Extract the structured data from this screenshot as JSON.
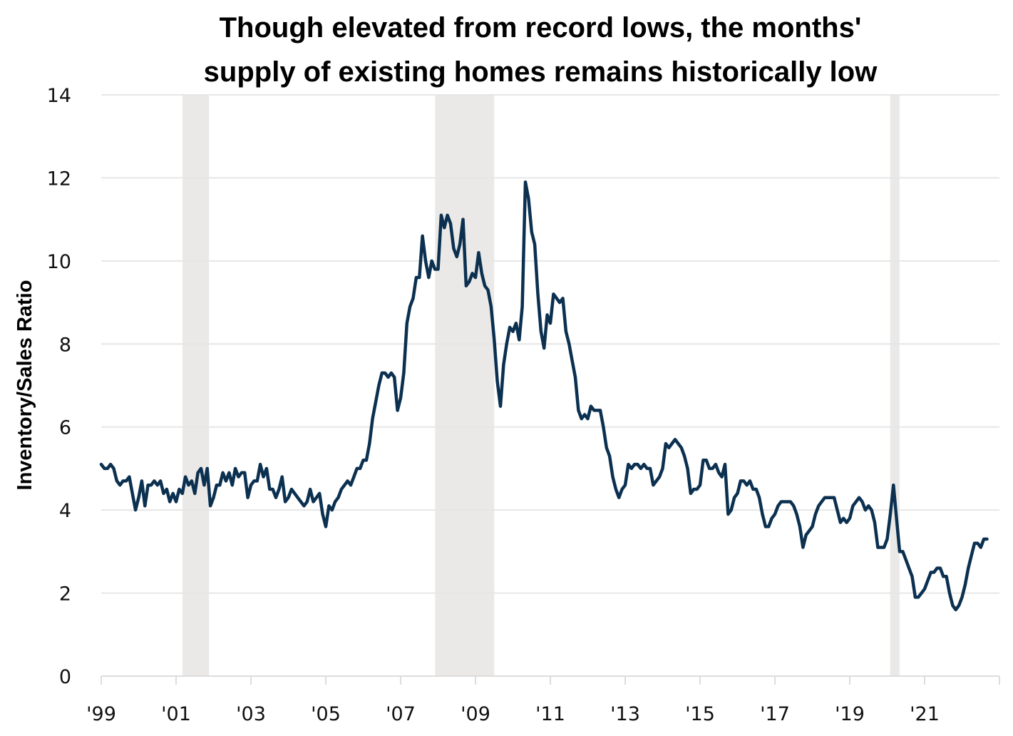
{
  "chart_data": {
    "type": "line",
    "title": "Though elevated from record lows, the months' supply of existing homes remains historically low",
    "title_lines": [
      "Though elevated from record lows, the months'",
      "supply of existing homes remains historically low"
    ],
    "xlabel": "",
    "ylabel": "Inventory/Sales Ratio",
    "ylim": [
      0,
      14
    ],
    "yticks": [
      0,
      2,
      4,
      6,
      8,
      10,
      12,
      14
    ],
    "xlim": [
      1999.0,
      2023.0
    ],
    "xticks": [
      {
        "value": 1999,
        "label": "'99"
      },
      {
        "value": 2001,
        "label": "'01"
      },
      {
        "value": 2003,
        "label": "'03"
      },
      {
        "value": 2005,
        "label": "'05"
      },
      {
        "value": 2007,
        "label": "'07"
      },
      {
        "value": 2009,
        "label": "'09"
      },
      {
        "value": 2011,
        "label": "'11"
      },
      {
        "value": 2013,
        "label": "'13"
      },
      {
        "value": 2015,
        "label": "'15"
      },
      {
        "value": 2017,
        "label": "'17"
      },
      {
        "value": 2019,
        "label": "'19"
      },
      {
        "value": 2021,
        "label": "'21"
      },
      {
        "value": 2023,
        "label": ""
      }
    ],
    "grid": true,
    "legend": "none",
    "line_color": "#0b3050",
    "shade_color": "#ebe9e7",
    "recessions": [
      {
        "start": 2001.17,
        "end": 2001.88
      },
      {
        "start": 2007.92,
        "end": 2009.5
      },
      {
        "start": 2020.08,
        "end": 2020.33
      }
    ],
    "series": [
      {
        "name": "Months' supply of existing homes",
        "start": 1999.0,
        "frequency": "monthly",
        "values": [
          5.1,
          5.0,
          5.0,
          5.1,
          5.0,
          4.7,
          4.6,
          4.7,
          4.7,
          4.8,
          4.4,
          4.0,
          4.3,
          4.7,
          4.1,
          4.6,
          4.6,
          4.7,
          4.6,
          4.7,
          4.4,
          4.5,
          4.2,
          4.4,
          4.2,
          4.5,
          4.4,
          4.8,
          4.6,
          4.7,
          4.4,
          4.9,
          5.0,
          4.6,
          5.0,
          4.1,
          4.3,
          4.6,
          4.6,
          4.9,
          4.7,
          4.9,
          4.6,
          5.0,
          4.8,
          4.9,
          4.9,
          4.3,
          4.6,
          4.7,
          4.7,
          5.1,
          4.8,
          5.0,
          4.5,
          4.5,
          4.3,
          4.5,
          4.8,
          4.2,
          4.3,
          4.5,
          4.4,
          4.3,
          4.2,
          4.1,
          4.2,
          4.5,
          4.2,
          4.3,
          4.4,
          3.9,
          3.6,
          4.1,
          4.0,
          4.2,
          4.3,
          4.5,
          4.6,
          4.7,
          4.6,
          4.8,
          5.0,
          5.0,
          5.2,
          5.2,
          5.6,
          6.2,
          6.6,
          7.0,
          7.3,
          7.3,
          7.2,
          7.3,
          7.2,
          6.4,
          6.7,
          7.3,
          8.5,
          8.9,
          9.1,
          9.6,
          9.6,
          10.6,
          10.0,
          9.6,
          10.0,
          9.8,
          9.8,
          11.1,
          10.8,
          11.1,
          10.9,
          10.3,
          10.1,
          10.4,
          11.0,
          9.4,
          9.5,
          9.7,
          9.6,
          10.2,
          9.7,
          9.4,
          9.3,
          8.9,
          8.1,
          7.1,
          6.5,
          7.5,
          8.0,
          8.4,
          8.3,
          8.5,
          8.1,
          8.9,
          11.9,
          11.5,
          10.7,
          10.4,
          9.2,
          8.3,
          7.9,
          8.7,
          8.5,
          9.2,
          9.1,
          9.0,
          9.1,
          8.3,
          8.0,
          7.6,
          7.2,
          6.4,
          6.2,
          6.3,
          6.2,
          6.5,
          6.4,
          6.4,
          6.4,
          6.0,
          5.5,
          5.3,
          4.8,
          4.5,
          4.3,
          4.5,
          4.6,
          5.1,
          5.0,
          5.1,
          5.1,
          5.0,
          5.1,
          5.0,
          5.0,
          4.6,
          4.7,
          4.8,
          5.0,
          5.6,
          5.5,
          5.6,
          5.7,
          5.6,
          5.5,
          5.3,
          5.0,
          4.4,
          4.5,
          4.5,
          4.6,
          5.2,
          5.2,
          5.0,
          5.0,
          5.1,
          4.9,
          4.8,
          5.1,
          3.9,
          4.0,
          4.3,
          4.4,
          4.7,
          4.7,
          4.6,
          4.7,
          4.5,
          4.5,
          4.3,
          3.9,
          3.6,
          3.6,
          3.8,
          3.9,
          4.1,
          4.2,
          4.2,
          4.2,
          4.2,
          4.1,
          3.9,
          3.6,
          3.1,
          3.4,
          3.5,
          3.6,
          3.9,
          4.1,
          4.2,
          4.3,
          4.3,
          4.3,
          4.3,
          4.0,
          3.7,
          3.8,
          3.7,
          3.8,
          4.1,
          4.2,
          4.3,
          4.2,
          4.0,
          4.1,
          4.0,
          3.7,
          3.1,
          3.1,
          3.1,
          3.3,
          3.9,
          4.6,
          3.8,
          3.0,
          3.0,
          2.8,
          2.6,
          2.4,
          1.9,
          1.9,
          2.0,
          2.1,
          2.3,
          2.5,
          2.5,
          2.6,
          2.6,
          2.4,
          2.4,
          2.0,
          1.7,
          1.6,
          1.7,
          1.9,
          2.2,
          2.6,
          2.9,
          3.2,
          3.2,
          3.1,
          3.3,
          3.3
        ]
      }
    ]
  }
}
